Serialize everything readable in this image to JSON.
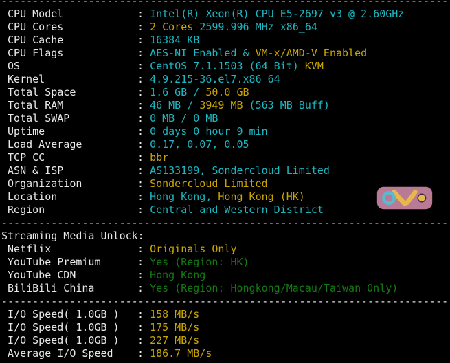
{
  "colors": {
    "label": "#e8e8e8",
    "cyan": "#1db6c0",
    "yellow": "#c9a400",
    "green": "#137a13"
  },
  "separator": "------------------------------------------------------------------------",
  "system": [
    {
      "label": "CPU Model",
      "value": [
        {
          "t": "Intel(R) Xeon(R) CPU E5-2697 v3 @ 2.60GHz",
          "c": "cyan"
        }
      ]
    },
    {
      "label": "CPU Cores",
      "value": [
        {
          "t": "2 Cores ",
          "c": "yellow"
        },
        {
          "t": "2599.996 MHz x86_64",
          "c": "cyan"
        }
      ]
    },
    {
      "label": "CPU Cache",
      "value": [
        {
          "t": "16384 KB",
          "c": "cyan"
        }
      ]
    },
    {
      "label": "CPU Flags",
      "value": [
        {
          "t": "AES-NI Enabled & ",
          "c": "cyan"
        },
        {
          "t": "VM-x/AMD-V Enabled",
          "c": "yellow"
        }
      ]
    },
    {
      "label": "OS",
      "value": [
        {
          "t": "CentOS 7.1.1503 (64 Bit) ",
          "c": "cyan"
        },
        {
          "t": "KVM",
          "c": "yellow"
        }
      ]
    },
    {
      "label": "Kernel",
      "value": [
        {
          "t": "4.9.215-36.el7.x86_64",
          "c": "cyan"
        }
      ]
    },
    {
      "label": "Total Space",
      "value": [
        {
          "t": "1.6 GB / ",
          "c": "cyan"
        },
        {
          "t": "50.0 GB",
          "c": "yellow"
        }
      ]
    },
    {
      "label": "Total RAM",
      "value": [
        {
          "t": "46 MB / ",
          "c": "cyan"
        },
        {
          "t": "3949 MB",
          "c": "yellow"
        },
        {
          "t": " (563 MB Buff)",
          "c": "cyan"
        }
      ]
    },
    {
      "label": "Total SWAP",
      "value": [
        {
          "t": "0 MB / 0 MB",
          "c": "cyan"
        }
      ]
    },
    {
      "label": "Uptime",
      "value": [
        {
          "t": "0 days 0 hour 9 min",
          "c": "cyan"
        }
      ]
    },
    {
      "label": "Load Average",
      "value": [
        {
          "t": "0.17, 0.07, 0.05",
          "c": "cyan"
        }
      ]
    },
    {
      "label": "TCP CC",
      "value": [
        {
          "t": "bbr",
          "c": "yellow"
        }
      ]
    },
    {
      "label": "ASN & ISP",
      "value": [
        {
          "t": "AS133199, Sondercloud Limited",
          "c": "cyan"
        }
      ]
    },
    {
      "label": "Organization",
      "value": [
        {
          "t": "Sondercloud Limited",
          "c": "yellow"
        }
      ]
    },
    {
      "label": "Location",
      "value": [
        {
          "t": "Hong Kong, ",
          "c": "cyan"
        },
        {
          "t": "Hong Kong (HK)",
          "c": "yellow"
        }
      ]
    },
    {
      "label": "Region",
      "value": [
        {
          "t": "Central and Western District",
          "c": "cyan"
        }
      ]
    }
  ],
  "streaming_header": "Streaming Media Unlock:",
  "streaming": [
    {
      "label": "Netflix",
      "value": [
        {
          "t": "Originals Only",
          "c": "yellow"
        }
      ]
    },
    {
      "label": "YouTube Premium",
      "value": [
        {
          "t": "Yes (Region: HK)",
          "c": "green"
        }
      ]
    },
    {
      "label": "YouTube CDN",
      "value": [
        {
          "t": "Hong Kong",
          "c": "green"
        }
      ]
    },
    {
      "label": "BiliBili China",
      "value": [
        {
          "t": "Yes (Region: Hongkong/Macau/Taiwan Only)",
          "c": "green"
        }
      ]
    }
  ],
  "io": [
    {
      "label": "I/O Speed( 1.0GB )",
      "value": [
        {
          "t": "158 MB/s",
          "c": "yellow"
        }
      ]
    },
    {
      "label": "I/O Speed( 1.0GB )",
      "value": [
        {
          "t": "175 MB/s",
          "c": "yellow"
        }
      ]
    },
    {
      "label": "I/O Speed( 1.0GB )",
      "value": [
        {
          "t": "227 MB/s",
          "c": "yellow"
        }
      ]
    },
    {
      "label": "Average I/O Speed",
      "value": [
        {
          "t": "186.7 MB/s",
          "c": "yellow"
        }
      ]
    }
  ],
  "watermark": {
    "text": "OZSV"
  }
}
